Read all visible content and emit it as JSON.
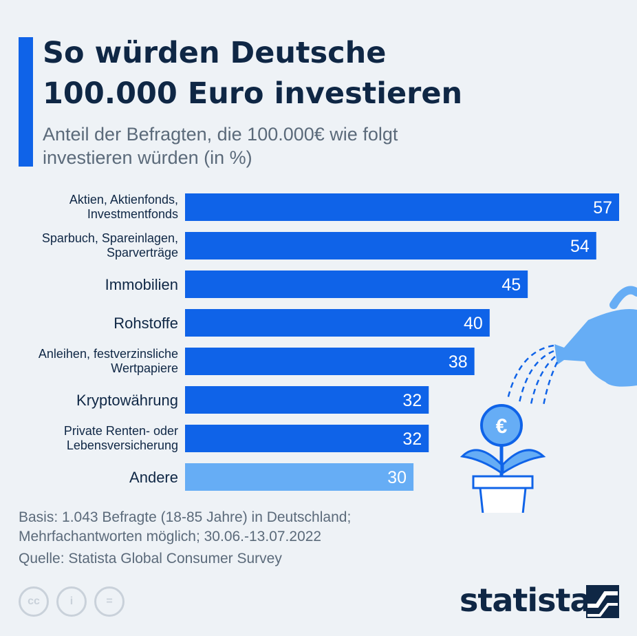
{
  "header": {
    "title_line1": "So würden Deutsche",
    "title_line2": "100.000 Euro investieren",
    "subtitle_line1": "Anteil der Befragten, die 100.000€ wie folgt",
    "subtitle_line2": "investieren würden (in %)"
  },
  "colors": {
    "primary_bar": "#0f63e8",
    "highlight_bar": "#66adf5",
    "accent": "#0f63e8",
    "title": "#0f2745"
  },
  "chart_data": {
    "type": "bar",
    "orientation": "horizontal",
    "categories": [
      "Aktien, Aktienfonds,\nInvestmentfonds",
      "Sparbuch, Spareinlagen,\nSparverträge",
      "Immobilien",
      "Rohstoffe",
      "Anleihen, festverzinsliche\nWertpapiere",
      "Kryptowährung",
      "Private Renten- oder\nLebensversicherung",
      "Andere"
    ],
    "values": [
      57,
      54,
      45,
      40,
      38,
      32,
      32,
      30
    ],
    "value_labels": [
      "57",
      "54",
      "45",
      "40",
      "38",
      "32",
      "32",
      "30"
    ],
    "highlight_index": 7,
    "title": "So würden Deutsche 100.000 Euro investieren",
    "xlabel": "",
    "ylabel": "",
    "xlim": [
      0,
      57
    ],
    "grid": false,
    "legend": "none"
  },
  "footer": {
    "basis": "Basis: 1.043 Befragte (18-85 Jahre) in Deutschland;\nMehrfachantworten möglich; 30.06.-13.07.2022",
    "source": "Quelle: Statista Global Consumer Survey",
    "license_icons": [
      "cc-icon",
      "attribution-icon",
      "no-derivatives-icon"
    ],
    "license_glyphs": [
      "cc",
      "i",
      "="
    ],
    "brand": "statista"
  },
  "illustration": {
    "icon": "watering-can-money-plant-icon",
    "coin_symbol": "€"
  }
}
